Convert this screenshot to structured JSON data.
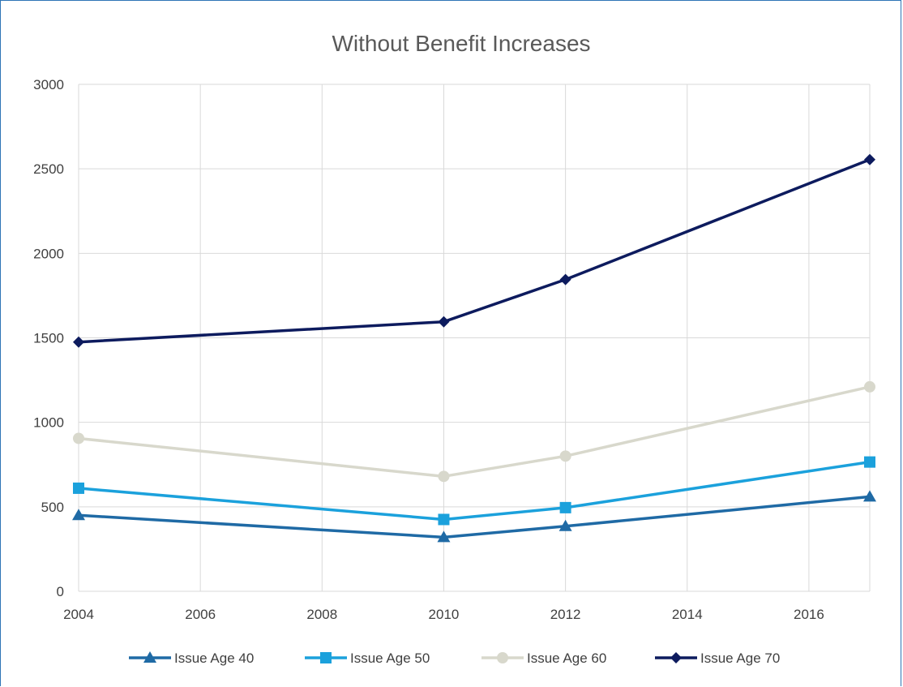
{
  "chart_data": {
    "type": "line",
    "title": "Without Benefit Increases",
    "xlabel": "",
    "ylabel": "",
    "xlim": [
      2004,
      2017
    ],
    "ylim": [
      0,
      3000
    ],
    "x_ticks": [
      "2004",
      "2006",
      "2008",
      "2010",
      "2012",
      "2014",
      "2016"
    ],
    "y_ticks": [
      "0",
      "500",
      "1000",
      "1500",
      "2000",
      "2500",
      "3000"
    ],
    "grid": true,
    "legend_position": "bottom",
    "x": [
      2004,
      2010,
      2012,
      2017
    ],
    "series": [
      {
        "name": "Issue Age 40",
        "values": [
          450,
          320,
          385,
          560
        ],
        "color": "#1f6aa5",
        "marker": "triangle"
      },
      {
        "name": "Issue Age 50",
        "values": [
          610,
          425,
          495,
          765
        ],
        "color": "#1ba1dc",
        "marker": "square"
      },
      {
        "name": "Issue Age 60",
        "values": [
          905,
          680,
          800,
          1210
        ],
        "color": "#d8d8cc",
        "marker": "circle"
      },
      {
        "name": "Issue Age 70",
        "values": [
          1475,
          1595,
          1845,
          2555
        ],
        "color": "#0d1b5e",
        "marker": "diamond"
      }
    ]
  }
}
